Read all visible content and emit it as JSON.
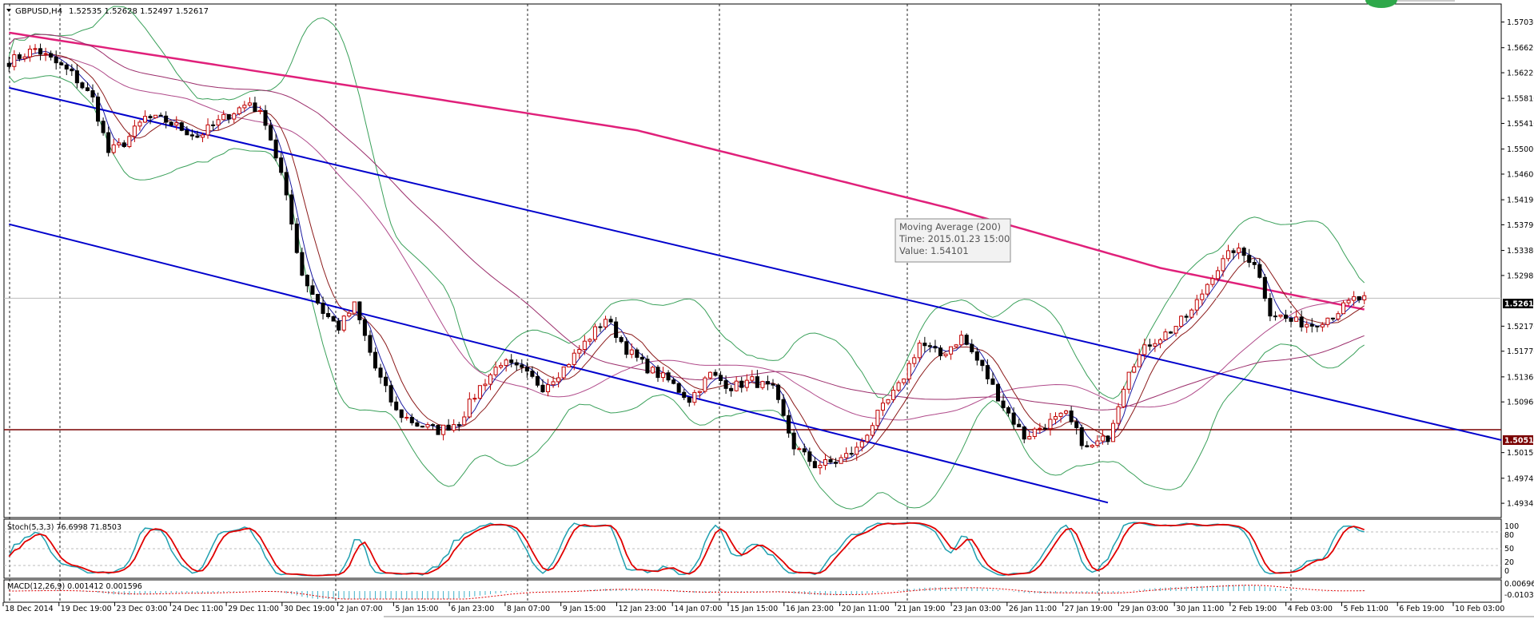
{
  "window": {
    "symbol_title": "GBPUSD,H4",
    "ohlc_text": "1.52535 1.52628 1.52497 1.52617"
  },
  "colors": {
    "bull_candle": "#c00000",
    "bear_candle": "#000000",
    "ma200": "#e0207a",
    "ma_slow": "#9b2d6b",
    "ma_fast_dark": "#8b1a1a",
    "ma_fast_blue": "#1a1aa0",
    "bollinger": "#3aa05a",
    "channel": "#0000cc",
    "hline": "#7a0000",
    "stoch_main": "#20a0b0",
    "stoch_signal": "#e00000",
    "macd_hist": "#40b0c8",
    "macd_signal": "#e00000",
    "grid": "#222222"
  },
  "tooltip": {
    "line1": "Moving Average (200)",
    "line2": "Time: 2015.01.23 15:00",
    "line3": "Value: 1.54101"
  },
  "price_labels": {
    "current": "1.52617",
    "hline": "1.50516"
  },
  "stoch_header": "Stoch(5,3,3) 76.6998 71.8503",
  "stoch_axis": [
    "100",
    "80",
    "50",
    "20",
    "0"
  ],
  "macd_header": "MACD(12,26,9) 0.001412 0.001596",
  "macd_axis": [
    "0.006961",
    "-0.010388"
  ],
  "chart_data": {
    "type": "candlestick",
    "title": "GBPUSD,H4",
    "ylim": [
      1.4915,
      1.5728
    ],
    "y_ticks": [
      "1.57030",
      "1.56620",
      "1.56220",
      "1.55810",
      "1.55410",
      "1.55000",
      "1.54600",
      "1.54190",
      "1.53790",
      "1.53380",
      "1.52980",
      "1.52170",
      "1.51770",
      "1.51360",
      "1.50960",
      "1.50150",
      "1.49740",
      "1.49340"
    ],
    "x_ticks": [
      "18 Dec 2014",
      "19 Dec 19:00",
      "23 Dec 03:00",
      "24 Dec 11:00",
      "29 Dec 11:00",
      "30 Dec 19:00",
      "2 Jan 07:00",
      "5 Jan 15:00",
      "6 Jan 23:00",
      "8 Jan 07:00",
      "9 Jan 15:00",
      "12 Jan 23:00",
      "14 Jan 07:00",
      "15 Jan 15:00",
      "16 Jan 23:00",
      "20 Jan 11:00",
      "21 Jan 19:00",
      "23 Jan 03:00",
      "26 Jan 11:00",
      "27 Jan 19:00",
      "29 Jan 03:00",
      "30 Jan 11:00",
      "2 Feb 19:00",
      "4 Feb 03:00",
      "5 Feb 11:00",
      "6 Feb 19:00",
      "10 Feb 03:00"
    ],
    "anchors": [
      [
        0,
        1.564
      ],
      [
        5,
        1.566
      ],
      [
        12,
        1.562
      ],
      [
        16,
        1.558
      ],
      [
        19,
        1.5495
      ],
      [
        22,
        1.551
      ],
      [
        26,
        1.555
      ],
      [
        30,
        1.5545
      ],
      [
        36,
        1.552
      ],
      [
        42,
        1.5555
      ],
      [
        46,
        1.5575
      ],
      [
        49,
        1.5545
      ],
      [
        52,
        1.546
      ],
      [
        56,
        1.53
      ],
      [
        60,
        1.524
      ],
      [
        63,
        1.5215
      ],
      [
        66,
        1.525
      ],
      [
        70,
        1.515
      ],
      [
        74,
        1.508
      ],
      [
        78,
        1.506
      ],
      [
        82,
        1.505
      ],
      [
        86,
        1.5065
      ],
      [
        90,
        1.512
      ],
      [
        94,
        1.516
      ],
      [
        98,
        1.5145
      ],
      [
        102,
        1.512
      ],
      [
        106,
        1.515
      ],
      [
        110,
        1.519
      ],
      [
        114,
        1.523
      ],
      [
        118,
        1.518
      ],
      [
        122,
        1.515
      ],
      [
        126,
        1.513
      ],
      [
        130,
        1.51
      ],
      [
        134,
        1.514
      ],
      [
        138,
        1.512
      ],
      [
        142,
        1.513
      ],
      [
        146,
        1.5115
      ],
      [
        150,
        1.5025
      ],
      [
        154,
        1.4995
      ],
      [
        158,
        1.5
      ],
      [
        162,
        1.502
      ],
      [
        166,
        1.5075
      ],
      [
        170,
        1.512
      ],
      [
        174,
        1.519
      ],
      [
        178,
        1.517
      ],
      [
        182,
        1.52
      ],
      [
        186,
        1.515
      ],
      [
        190,
        1.509
      ],
      [
        194,
        1.504
      ],
      [
        198,
        1.506
      ],
      [
        202,
        1.5075
      ],
      [
        206,
        1.502
      ],
      [
        210,
        1.504
      ],
      [
        214,
        1.515
      ],
      [
        218,
        1.519
      ],
      [
        222,
        1.521
      ],
      [
        226,
        1.524
      ],
      [
        230,
        1.53
      ],
      [
        234,
        1.534
      ],
      [
        238,
        1.532
      ],
      [
        241,
        1.524
      ],
      [
        245,
        1.5225
      ],
      [
        249,
        1.522
      ],
      [
        253,
        1.5235
      ],
      [
        257,
        1.526
      ]
    ],
    "moving_average_200": [
      [
        0,
        1.5686
      ],
      [
        120,
        1.553
      ],
      [
        180,
        1.5405
      ],
      [
        220,
        1.531
      ],
      [
        270,
        1.5225
      ]
    ],
    "channel_upper": [
      [
        0,
        1.5598
      ],
      [
        270,
        1.5065
      ]
    ],
    "channel_lower": [
      [
        0,
        1.538
      ],
      [
        210,
        1.4935
      ]
    ],
    "horizontal_line": 1.50516
  }
}
